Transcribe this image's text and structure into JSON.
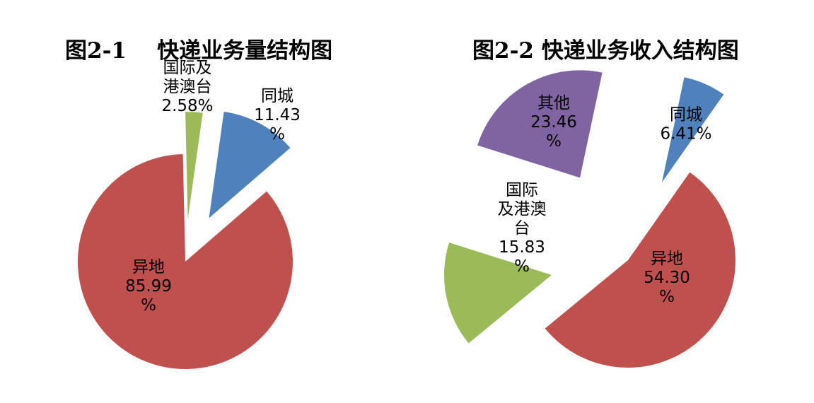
{
  "chart_data": [
    {
      "type": "pie",
      "title": "图2-1    快递业务量结构图",
      "exploded": true,
      "slices": [
        {
          "name": "同城",
          "value": 11.43,
          "label_lines": [
            "同城",
            "11.43",
            "%"
          ],
          "color": "#4f81bd"
        },
        {
          "name": "异地",
          "value": 85.99,
          "label_lines": [
            "异地",
            "85.99",
            "%"
          ],
          "color": "#c0504d"
        },
        {
          "name": "国际及港澳台",
          "value": 2.58,
          "label_lines": [
            "国际及",
            "港澳台",
            "2.58%"
          ],
          "color": "#9bbb59"
        }
      ]
    },
    {
      "type": "pie",
      "title": "图2-2 快递业务收入结构图",
      "exploded": true,
      "slices": [
        {
          "name": "同城",
          "value": 6.41,
          "label_lines": [
            "同城",
            "6.41%"
          ],
          "color": "#4f81bd"
        },
        {
          "name": "异地",
          "value": 54.3,
          "label_lines": [
            "异地",
            "54.30",
            "%"
          ],
          "color": "#c0504d"
        },
        {
          "name": "国际及港澳台",
          "value": 15.83,
          "label_lines": [
            "国际",
            "及港澳",
            "台",
            "15.83",
            "%"
          ],
          "color": "#9bbb59"
        },
        {
          "name": "其他",
          "value": 23.46,
          "label_lines": [
            "其他",
            "23.46",
            "%"
          ],
          "color": "#8064a2"
        }
      ]
    }
  ]
}
